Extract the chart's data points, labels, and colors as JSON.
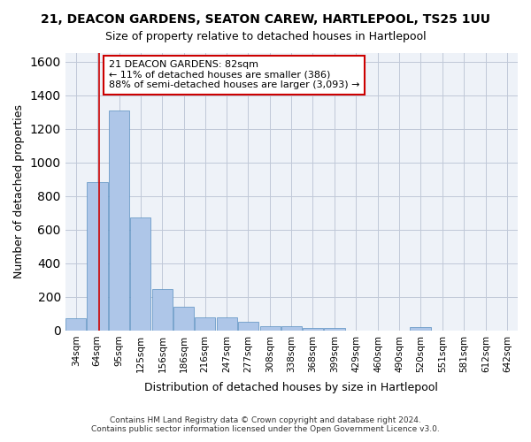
{
  "title": "21, DEACON GARDENS, SEATON CAREW, HARTLEPOOL, TS25 1UU",
  "subtitle": "Size of property relative to detached houses in Hartlepool",
  "xlabel": "Distribution of detached houses by size in Hartlepool",
  "ylabel": "Number of detached properties",
  "footer_line1": "Contains HM Land Registry data © Crown copyright and database right 2024.",
  "footer_line2": "Contains public sector information licensed under the Open Government Licence v3.0.",
  "bin_labels": [
    "34sqm",
    "64sqm",
    "95sqm",
    "125sqm",
    "156sqm",
    "186sqm",
    "216sqm",
    "247sqm",
    "277sqm",
    "308sqm",
    "338sqm",
    "368sqm",
    "399sqm",
    "429sqm",
    "460sqm",
    "490sqm",
    "520sqm",
    "551sqm",
    "581sqm",
    "612sqm",
    "642sqm"
  ],
  "bin_edges": [
    34,
    64,
    95,
    125,
    156,
    186,
    216,
    247,
    277,
    308,
    338,
    368,
    399,
    429,
    460,
    490,
    520,
    551,
    581,
    612,
    642
  ],
  "bar_heights": [
    75,
    880,
    1310,
    670,
    245,
    140,
    80,
    80,
    50,
    25,
    25,
    15,
    15,
    0,
    0,
    0,
    20,
    0,
    0,
    0,
    0
  ],
  "bar_color": "#aec6e8",
  "bar_edge_color": "#5a8fc0",
  "grid_color": "#c0c8d8",
  "bg_color": "#eef2f8",
  "red_line_x": 82,
  "annotation_text": "21 DEACON GARDENS: 82sqm\n← 11% of detached houses are smaller (386)\n88% of semi-detached houses are larger (3,093) →",
  "annotation_box_color": "#ffffff",
  "annotation_box_edge": "#cc0000",
  "annotation_text_color": "#000000",
  "ylim": [
    0,
    1650
  ],
  "yticks": [
    0,
    200,
    400,
    600,
    800,
    1000,
    1200,
    1400,
    1600
  ]
}
